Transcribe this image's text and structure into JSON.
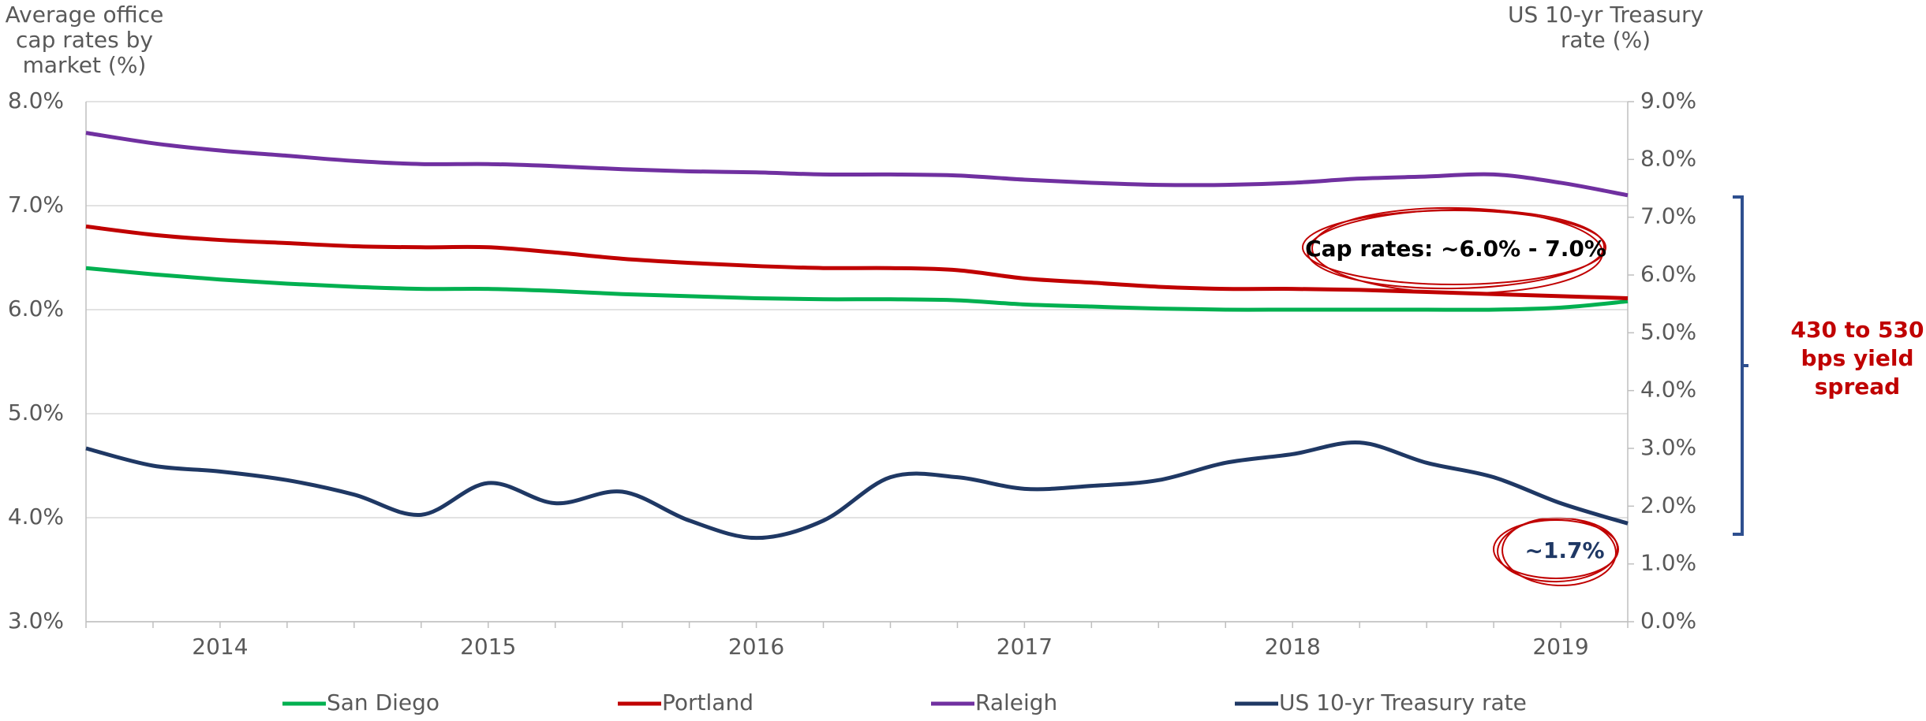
{
  "chart_data": {
    "type": "line",
    "y_title": [
      "Average office",
      "cap rates by",
      "market (%)"
    ],
    "y2_title": [
      "US 10-yr Treasury",
      "rate (%)"
    ],
    "categories": [
      null,
      null,
      "2014",
      null,
      null,
      null,
      "2015",
      null,
      null,
      null,
      "2016",
      null,
      null,
      null,
      "2017",
      null,
      null,
      null,
      "2018",
      null,
      null,
      null,
      "2019",
      null
    ],
    "series": [
      {
        "name": "San Diego",
        "color": "#00b050",
        "values": [
          6.4,
          6.34,
          6.29,
          6.25,
          6.22,
          6.2,
          6.2,
          6.18,
          6.15,
          6.13,
          6.11,
          6.1,
          6.1,
          6.09,
          6.05,
          6.03,
          6.01,
          6.0,
          6.0,
          6.0,
          6.0,
          6.0,
          6.02,
          6.08
        ]
      },
      {
        "name": "Portland",
        "color": "#c00000",
        "values": [
          6.8,
          6.72,
          6.67,
          6.64,
          6.61,
          6.6,
          6.6,
          6.55,
          6.49,
          6.45,
          6.42,
          6.4,
          6.4,
          6.38,
          6.3,
          6.26,
          6.22,
          6.2,
          6.2,
          6.19,
          6.17,
          6.15,
          6.13,
          6.11
        ]
      },
      {
        "name": "Raleigh",
        "color": "#7030a0",
        "values": [
          7.7,
          7.6,
          7.53,
          7.48,
          7.43,
          7.4,
          7.4,
          7.38,
          7.35,
          7.33,
          7.32,
          7.3,
          7.3,
          7.29,
          7.25,
          7.22,
          7.2,
          7.2,
          7.22,
          7.26,
          7.28,
          7.3,
          7.22,
          7.1
        ]
      },
      {
        "name": "US 10-yr Treasury rate",
        "color": "#1f3864",
        "axis": "y2",
        "values": [
          3.0,
          2.7,
          2.6,
          2.45,
          2.2,
          1.85,
          2.4,
          2.05,
          2.25,
          1.75,
          1.45,
          1.75,
          2.5,
          2.5,
          2.3,
          2.35,
          2.45,
          2.75,
          2.9,
          3.1,
          2.75,
          2.5,
          2.05,
          1.7
        ]
      }
    ],
    "ylim": [
      3,
      8
    ],
    "yticks": [
      {
        "value": 3,
        "label": "3.0%"
      },
      {
        "value": 4,
        "label": "4.0%"
      },
      {
        "value": 5,
        "label": "5.0%"
      },
      {
        "value": 6,
        "label": "6.0%"
      },
      {
        "value": 7,
        "label": "7.0%"
      },
      {
        "value": 8,
        "label": "8.0%"
      }
    ],
    "y2lim": [
      0,
      9
    ],
    "y2ticks": [
      {
        "value": 0,
        "label": "0.0%"
      },
      {
        "value": 1,
        "label": "1.0%"
      },
      {
        "value": 2,
        "label": "2.0%"
      },
      {
        "value": 3,
        "label": "3.0%"
      },
      {
        "value": 4,
        "label": "4.0%"
      },
      {
        "value": 5,
        "label": "5.0%"
      },
      {
        "value": 6,
        "label": "6.0%"
      },
      {
        "value": 7,
        "label": "7.0%"
      },
      {
        "value": 8,
        "label": "8.0%"
      },
      {
        "value": 9,
        "label": "9.0%"
      }
    ],
    "grid": true,
    "legend": "bottom",
    "annotations": {
      "cap_rates": "Cap rates: ~6.0% - 7.0%",
      "treasury": "~1.7%",
      "spread": [
        "430 to 530",
        "bps yield",
        "spread"
      ]
    }
  }
}
